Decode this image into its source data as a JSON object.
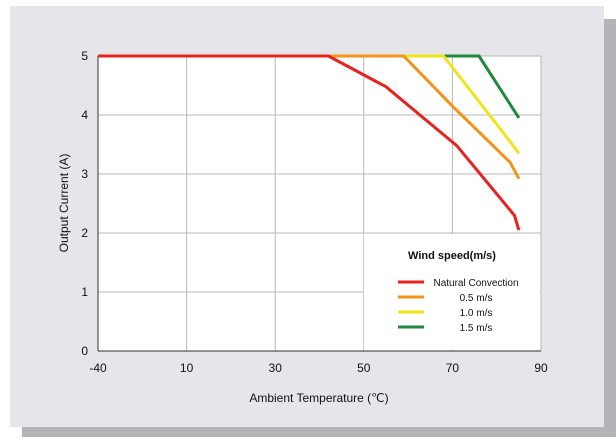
{
  "chart_data": {
    "type": "line",
    "title": "",
    "xlabel": "Ambient Temperature (℃)",
    "ylabel": "Output Current (A)",
    "xlim": [
      -40,
      90
    ],
    "ylim": [
      0,
      5
    ],
    "x_ticks": [
      -40,
      10,
      30,
      50,
      70,
      90
    ],
    "x_tick_labels": [
      "-40",
      "10",
      "30",
      "50",
      "70",
      "90"
    ],
    "y_ticks": [
      0,
      1,
      2,
      3,
      4,
      5
    ],
    "y_tick_labels": [
      "0",
      "1",
      "2",
      "3",
      "4",
      "5"
    ],
    "grid": true,
    "legend": {
      "title": "Wind speed(m/s)",
      "placement": "bottom-right",
      "entries": [
        "Natural Convection",
        "0.5 m/s",
        "1.0 m/s",
        "1.5 m/s"
      ]
    },
    "series": [
      {
        "name": "Natural Convection",
        "color": "#e8231f",
        "points": [
          [
            -40,
            5
          ],
          [
            42,
            5
          ],
          [
            55,
            4.48
          ],
          [
            71,
            3.48
          ],
          [
            84,
            2.3
          ],
          [
            85,
            2.05
          ]
        ]
      },
      {
        "name": "0.5 m/s",
        "color": "#f39318",
        "points": [
          [
            42,
            5
          ],
          [
            59,
            5
          ],
          [
            70,
            4.15
          ],
          [
            83,
            3.2
          ],
          [
            85,
            2.92
          ]
        ]
      },
      {
        "name": "1.0 m/s",
        "color": "#f2e21a",
        "points": [
          [
            42,
            5
          ],
          [
            68,
            5
          ],
          [
            82,
            3.65
          ],
          [
            85,
            3.35
          ]
        ]
      },
      {
        "name": "1.5 m/s",
        "color": "#1f8a3c",
        "points": [
          [
            68,
            5
          ],
          [
            76,
            5
          ],
          [
            85,
            3.95
          ]
        ]
      }
    ]
  },
  "colors": {
    "frame_background": "#e6e6ea",
    "frame_shadow": "#b3b3b8",
    "plot_background": "#ffffff",
    "grid": "#b8b8b8"
  }
}
